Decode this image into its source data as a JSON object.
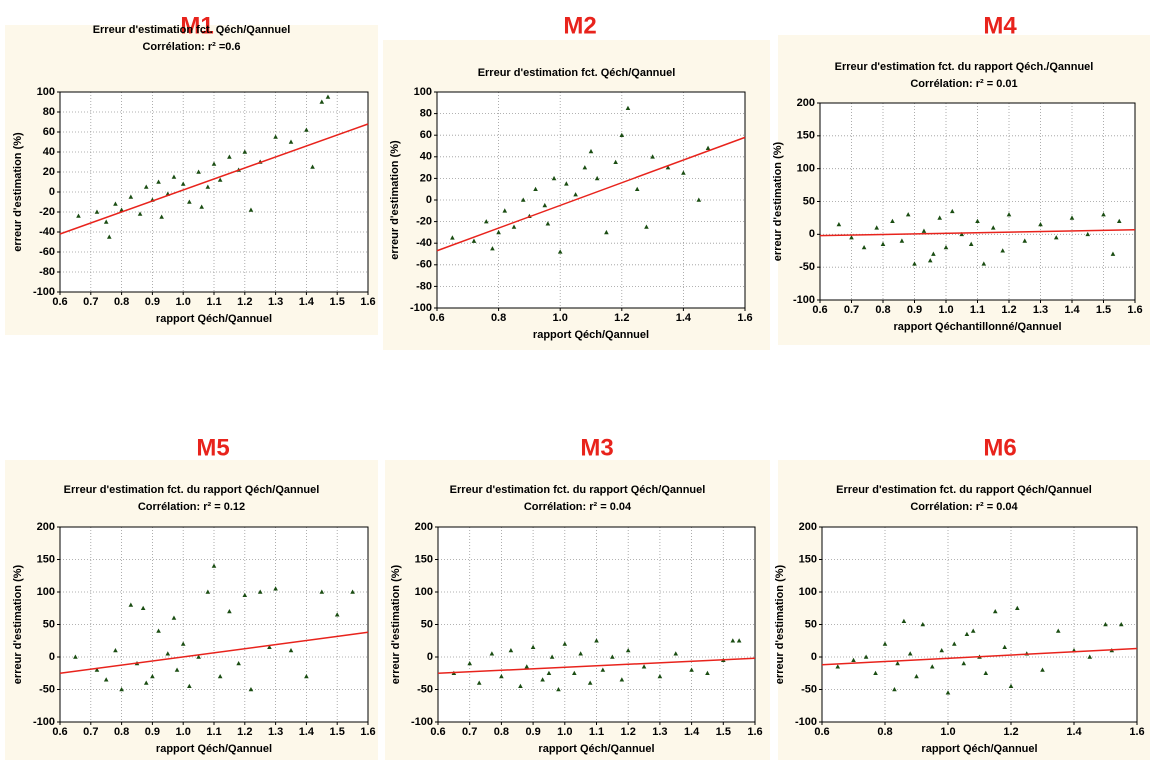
{
  "chart_data": [
    {
      "type": "scatter",
      "label": "M1",
      "title": "Erreur d'estimation fct. Qéch/Qannuel",
      "subtitle": "Corrélation: r² =0.6",
      "xlabel": "rapport Qéch/Qannuel",
      "ylabel": "erreur d'estimation (%)",
      "color": "#1a4d12",
      "grid": true,
      "x": [
        0.66,
        0.72,
        0.75,
        0.78,
        0.8,
        0.83,
        0.86,
        0.88,
        0.9,
        0.92,
        0.95,
        0.97,
        1.0,
        1.02,
        1.05,
        1.08,
        1.1,
        1.12,
        1.15,
        1.18,
        1.2,
        1.22,
        1.25,
        1.3,
        1.35,
        1.4,
        1.42,
        1.45,
        1.47,
        0.76,
        0.93,
        1.06
      ],
      "y": [
        -24,
        -20,
        -30,
        -12,
        -18,
        -5,
        -22,
        5,
        -8,
        10,
        -2,
        15,
        8,
        -10,
        20,
        5,
        28,
        12,
        35,
        22,
        40,
        -18,
        30,
        55,
        50,
        62,
        25,
        90,
        95,
        -45,
        -25,
        -15
      ],
      "trend": {
        "color": "#e8231c",
        "x": [
          0.6,
          1.6
        ],
        "y": [
          -42,
          68
        ]
      },
      "xlim": [
        0.6,
        1.6
      ],
      "ylim": [
        -100,
        100
      ],
      "xticks": [
        0.6,
        0.7,
        0.8,
        0.9,
        {
          "value": 1,
          "label": "1.0"
        },
        1.1,
        1.2,
        1.3,
        1.4,
        1.5,
        1.6
      ],
      "yticks": [
        -100,
        -80,
        -60,
        -40,
        -20,
        0,
        20,
        40,
        60,
        80,
        100
      ]
    },
    {
      "type": "scatter",
      "label": "M2",
      "title": "Erreur d'estimation fct. Qéch/Qannuel",
      "xlabel": "rapport Qéch/Qannuel",
      "ylabel": "erreur d'estimation (%)",
      "color": "#1a4d12",
      "grid": true,
      "x": [
        0.65,
        0.72,
        0.76,
        0.8,
        0.82,
        0.85,
        0.88,
        0.9,
        0.92,
        0.95,
        0.98,
        1.0,
        1.02,
        1.05,
        1.08,
        1.1,
        1.12,
        1.15,
        1.18,
        1.2,
        1.22,
        1.25,
        1.28,
        1.3,
        1.35,
        1.4,
        1.45,
        1.48,
        0.78,
        0.96
      ],
      "y": [
        -35,
        -38,
        -20,
        -30,
        -10,
        -25,
        0,
        -15,
        10,
        -5,
        20,
        -48,
        15,
        5,
        30,
        45,
        20,
        -30,
        35,
        60,
        85,
        10,
        -25,
        40,
        30,
        25,
        0,
        48,
        -45,
        -22
      ],
      "trend": {
        "color": "#e8231c",
        "x": [
          0.6,
          1.6
        ],
        "y": [
          -47,
          58
        ]
      },
      "xlim": [
        0.6,
        1.6
      ],
      "ylim": [
        -100,
        100
      ],
      "xticks": [
        0.6,
        0.8,
        {
          "value": 1,
          "label": "1.0"
        },
        1.2,
        1.4,
        1.6
      ],
      "yticks": [
        -100,
        -80,
        -60,
        -40,
        -20,
        0,
        20,
        40,
        60,
        80,
        100
      ]
    },
    {
      "type": "scatter",
      "label": "M4",
      "title": "Erreur d'estimation fct. du rapport Qéch./Qannuel",
      "subtitle": "Corrélation: r² = 0.01",
      "xlabel": "rapport Qéchantillonné/Qannuel",
      "ylabel": "erreur d'estimation (%)",
      "color": "#1a4d12",
      "grid": true,
      "x": [
        0.66,
        0.7,
        0.74,
        0.78,
        0.8,
        0.83,
        0.86,
        0.88,
        0.9,
        0.93,
        0.96,
        0.98,
        1.0,
        1.02,
        1.05,
        1.08,
        1.1,
        1.12,
        1.15,
        1.18,
        1.2,
        1.25,
        1.3,
        1.35,
        1.4,
        1.45,
        1.5,
        1.53,
        1.55,
        0.95
      ],
      "y": [
        15,
        -5,
        -20,
        10,
        -15,
        20,
        -10,
        30,
        -45,
        5,
        -30,
        25,
        -20,
        35,
        0,
        -15,
        20,
        -45,
        10,
        -25,
        30,
        -10,
        15,
        -5,
        25,
        0,
        30,
        -30,
        20,
        -40
      ],
      "trend": {
        "color": "#e8231c",
        "x": [
          0.6,
          1.6
        ],
        "y": [
          -2,
          7
        ]
      },
      "xlim": [
        0.6,
        1.6
      ],
      "ylim": [
        -100,
        200
      ],
      "xticks": [
        0.6,
        0.7,
        0.8,
        0.9,
        {
          "value": 1,
          "label": "1.0"
        },
        1.1,
        1.2,
        1.3,
        1.4,
        1.5,
        1.6
      ],
      "yticks": [
        -100,
        -50,
        0,
        50,
        100,
        150,
        200
      ]
    },
    {
      "type": "scatter",
      "label": "M5",
      "title": "Erreur d'estimation fct. du rapport Qéch/Qannuel",
      "subtitle": "Corrélation: r² = 0.12",
      "xlabel": "rapport Qéch/Qannuel",
      "ylabel": "erreur d'estimation (%)",
      "color": "#1a4d12",
      "grid": true,
      "x": [
        0.65,
        0.72,
        0.75,
        0.78,
        0.8,
        0.83,
        0.85,
        0.87,
        0.9,
        0.92,
        0.95,
        0.98,
        1.0,
        1.02,
        1.05,
        1.08,
        1.1,
        1.12,
        1.15,
        1.18,
        1.2,
        1.22,
        1.25,
        1.28,
        1.3,
        1.35,
        1.4,
        1.45,
        1.5,
        1.55,
        0.88,
        0.97
      ],
      "y": [
        0,
        -20,
        -35,
        10,
        -50,
        80,
        -10,
        75,
        -30,
        40,
        5,
        -20,
        20,
        -45,
        0,
        100,
        140,
        -30,
        70,
        -10,
        95,
        -50,
        100,
        15,
        105,
        10,
        -30,
        100,
        65,
        100,
        -40,
        60
      ],
      "trend": {
        "color": "#e8231c",
        "x": [
          0.6,
          1.6
        ],
        "y": [
          -25,
          38
        ]
      },
      "xlim": [
        0.6,
        1.6
      ],
      "ylim": [
        -100,
        200
      ],
      "xticks": [
        0.6,
        0.7,
        0.8,
        0.9,
        {
          "value": 1,
          "label": "1.0"
        },
        1.1,
        1.2,
        1.3,
        1.4,
        1.5,
        1.6
      ],
      "yticks": [
        -100,
        -50,
        0,
        50,
        100,
        150,
        200
      ]
    },
    {
      "type": "scatter",
      "label": "M3",
      "title": "Erreur d'estimation fct. du rapport Qéch/Qannuel",
      "subtitle": "Corrélation: r² = 0.04",
      "xlabel": "rapport Qéch/Qannuel",
      "ylabel": "erreur d'estimation (%)",
      "color": "#1a4d12",
      "grid": true,
      "x": [
        0.65,
        0.7,
        0.73,
        0.77,
        0.8,
        0.83,
        0.86,
        0.88,
        0.9,
        0.93,
        0.96,
        0.98,
        1.0,
        1.03,
        1.05,
        1.08,
        1.1,
        1.12,
        1.15,
        1.18,
        1.2,
        1.25,
        1.3,
        1.35,
        1.4,
        1.45,
        1.5,
        1.53,
        1.55,
        0.95
      ],
      "y": [
        -25,
        -10,
        -40,
        5,
        -30,
        10,
        -45,
        -15,
        15,
        -35,
        0,
        -50,
        20,
        -25,
        5,
        -40,
        25,
        -20,
        0,
        -35,
        10,
        -15,
        -30,
        5,
        -20,
        -25,
        -5,
        25,
        25,
        -25
      ],
      "trend": {
        "color": "#e8231c",
        "x": [
          0.6,
          1.6
        ],
        "y": [
          -25,
          -2
        ]
      },
      "xlim": [
        0.6,
        1.6
      ],
      "ylim": [
        -100,
        200
      ],
      "xticks": [
        0.6,
        0.7,
        0.8,
        0.9,
        {
          "value": 1,
          "label": "1.0"
        },
        1.1,
        1.2,
        1.3,
        1.4,
        1.5,
        1.6
      ],
      "yticks": [
        -100,
        -50,
        0,
        50,
        100,
        150,
        200
      ]
    },
    {
      "type": "scatter",
      "label": "M6",
      "title": "Erreur d'estimation fct. du rapport Qéch/Qannuel",
      "subtitle": "Corrélation: r² = 0.04",
      "xlabel": "rapport Qéch/Qannuel",
      "ylabel": "erreur d'estimation (%)",
      "color": "#1a4d12",
      "grid": true,
      "x": [
        0.65,
        0.7,
        0.74,
        0.77,
        0.8,
        0.83,
        0.86,
        0.88,
        0.9,
        0.92,
        0.95,
        0.98,
        1.0,
        1.02,
        1.05,
        1.08,
        1.1,
        1.12,
        1.15,
        1.18,
        1.2,
        1.22,
        1.25,
        1.3,
        1.35,
        1.4,
        1.45,
        1.5,
        1.52,
        1.55,
        0.84,
        1.06
      ],
      "y": [
        -15,
        -5,
        0,
        -25,
        20,
        -50,
        55,
        5,
        -30,
        50,
        -15,
        10,
        -55,
        20,
        -10,
        40,
        0,
        -25,
        70,
        15,
        -45,
        75,
        5,
        -20,
        40,
        10,
        0,
        50,
        10,
        50,
        -10,
        35
      ],
      "trend": {
        "color": "#e8231c",
        "x": [
          0.6,
          1.6
        ],
        "y": [
          -12,
          13
        ]
      },
      "xlim": [
        0.6,
        1.6
      ],
      "ylim": [
        -100,
        200
      ],
      "xticks": [
        0.6,
        0.8,
        {
          "value": 1,
          "label": "1.0"
        },
        1.2,
        1.4,
        1.6
      ],
      "yticks": [
        -100,
        -50,
        0,
        50,
        100,
        150,
        200
      ]
    }
  ]
}
